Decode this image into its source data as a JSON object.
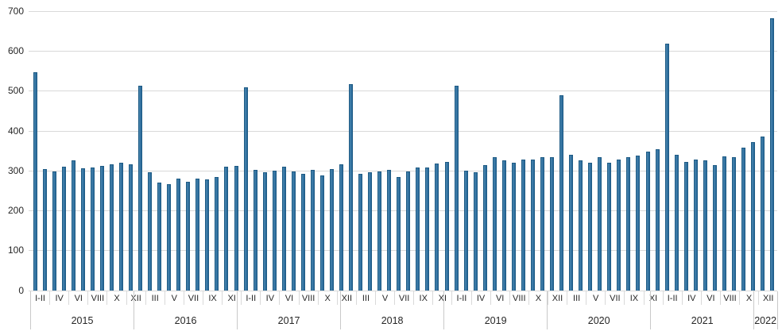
{
  "chart_data": {
    "type": "bar",
    "title": "",
    "xlabel": "",
    "ylabel": "",
    "ylim": [
      0,
      700
    ],
    "y_ticks": [
      0,
      100,
      200,
      300,
      400,
      500,
      600,
      700
    ],
    "y_tick_labels": [
      "0",
      "100",
      "200",
      "300",
      "400",
      "500",
      "600",
      "700"
    ],
    "grid": "horizontal",
    "legend": "none",
    "bar_color": "#2e6e9e",
    "bar_border_color": "#1d5a84",
    "gridline_color": "#d9d9d9",
    "text_color": "#262626",
    "months_order": [
      "I-II",
      "III",
      "IV",
      "V",
      "VI",
      "VII",
      "VIII",
      "IX",
      "X",
      "XI",
      "XII"
    ],
    "x_tick_labels": [
      "I-II",
      "IV",
      "VI",
      "VIII",
      "X",
      "XII",
      "III",
      "V",
      "VII",
      "IX",
      "XI",
      "I-II",
      "IV",
      "VI",
      "VIII",
      "X",
      "XII",
      "III",
      "V",
      "VII",
      "IX",
      "XI",
      "I-II",
      "IV",
      "VI",
      "VIII",
      "X",
      "XII",
      "III",
      "V",
      "VII",
      "IX",
      "XI",
      "I-II",
      "IV",
      "VI",
      "VIII",
      "X",
      "XII"
    ],
    "years": [
      {
        "label": "2015",
        "values": [
          547,
          304,
          298,
          309,
          326,
          305,
          307,
          312,
          316,
          320,
          316
        ]
      },
      {
        "label": "2016",
        "values": [
          513,
          295,
          269,
          265,
          279,
          271,
          279,
          278,
          284,
          309,
          312
        ]
      },
      {
        "label": "2017",
        "values": [
          508,
          301,
          295,
          300,
          310,
          297,
          292,
          301,
          287,
          303,
          315
        ]
      },
      {
        "label": "2018",
        "values": [
          517,
          291,
          296,
          298,
          302,
          284,
          298,
          308,
          307,
          317,
          322
        ]
      },
      {
        "label": "2019",
        "values": [
          513,
          300,
          295,
          314,
          334,
          325,
          319,
          327,
          327,
          334,
          333
        ]
      },
      {
        "label": "2020",
        "values": [
          488,
          339,
          325,
          320,
          334,
          319,
          328,
          333,
          337,
          348,
          353
        ]
      },
      {
        "label": "2021",
        "values": [
          618,
          339,
          322,
          327,
          325,
          313,
          335,
          334,
          357,
          371,
          386
        ]
      },
      {
        "label": "2022",
        "values": [
          682
        ]
      }
    ]
  }
}
